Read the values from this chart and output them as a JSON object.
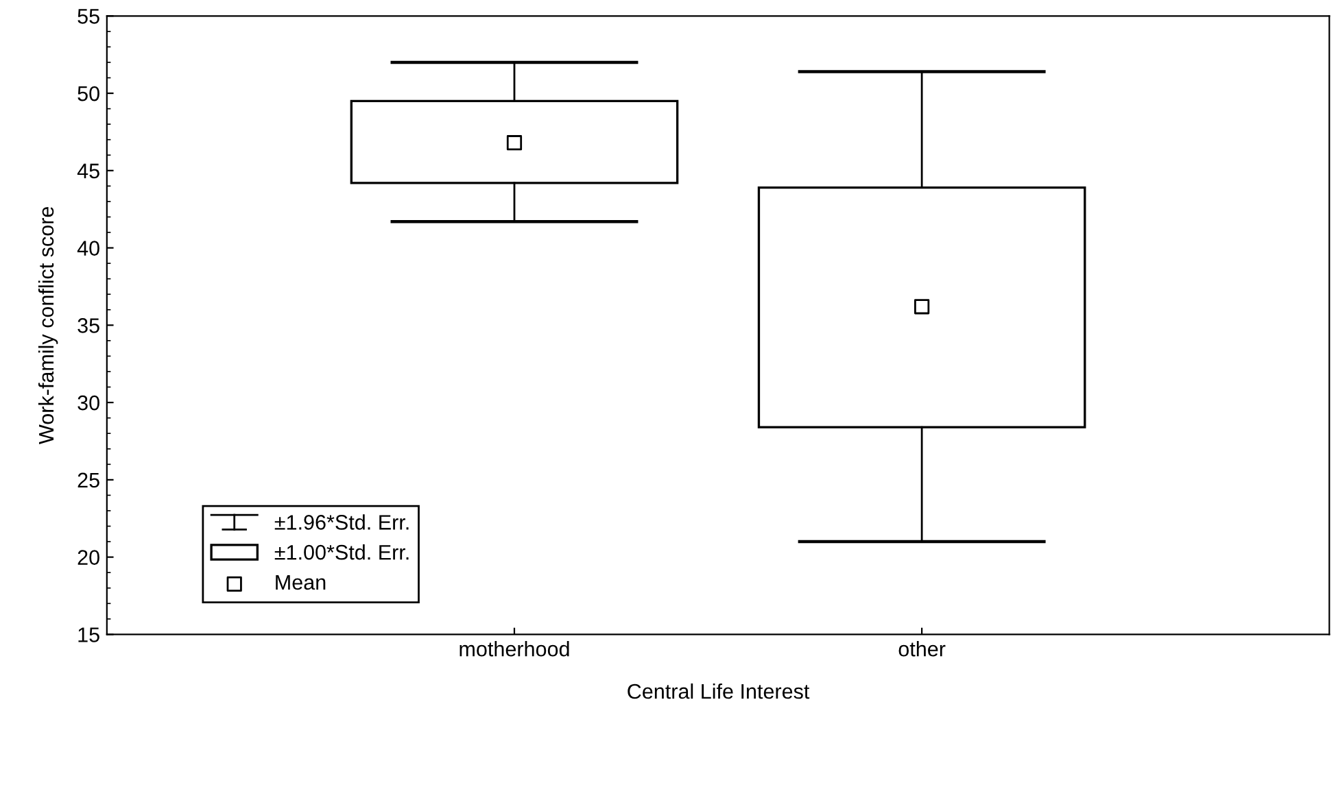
{
  "chart_data": {
    "type": "box",
    "xlabel": "Central Life Interest",
    "ylabel": "Work-family conflict score",
    "categories": [
      "motherhood",
      "other"
    ],
    "boxes": [
      {
        "low": 41.7,
        "q1": 44.2,
        "q3": 49.5,
        "high": 52.0,
        "mean": 46.8
      },
      {
        "low": 21.0,
        "q1": 28.4,
        "q3": 43.9,
        "high": 51.4,
        "mean": 36.2
      }
    ],
    "color": "#000000",
    "annotations": [
      "±1.96*Std. Err.",
      "±1.00*Std. Err.",
      "Mean"
    ],
    "ylim": [
      15,
      55
    ],
    "yticks": [
      15,
      20,
      25,
      30,
      35,
      40,
      45,
      50,
      55
    ]
  }
}
